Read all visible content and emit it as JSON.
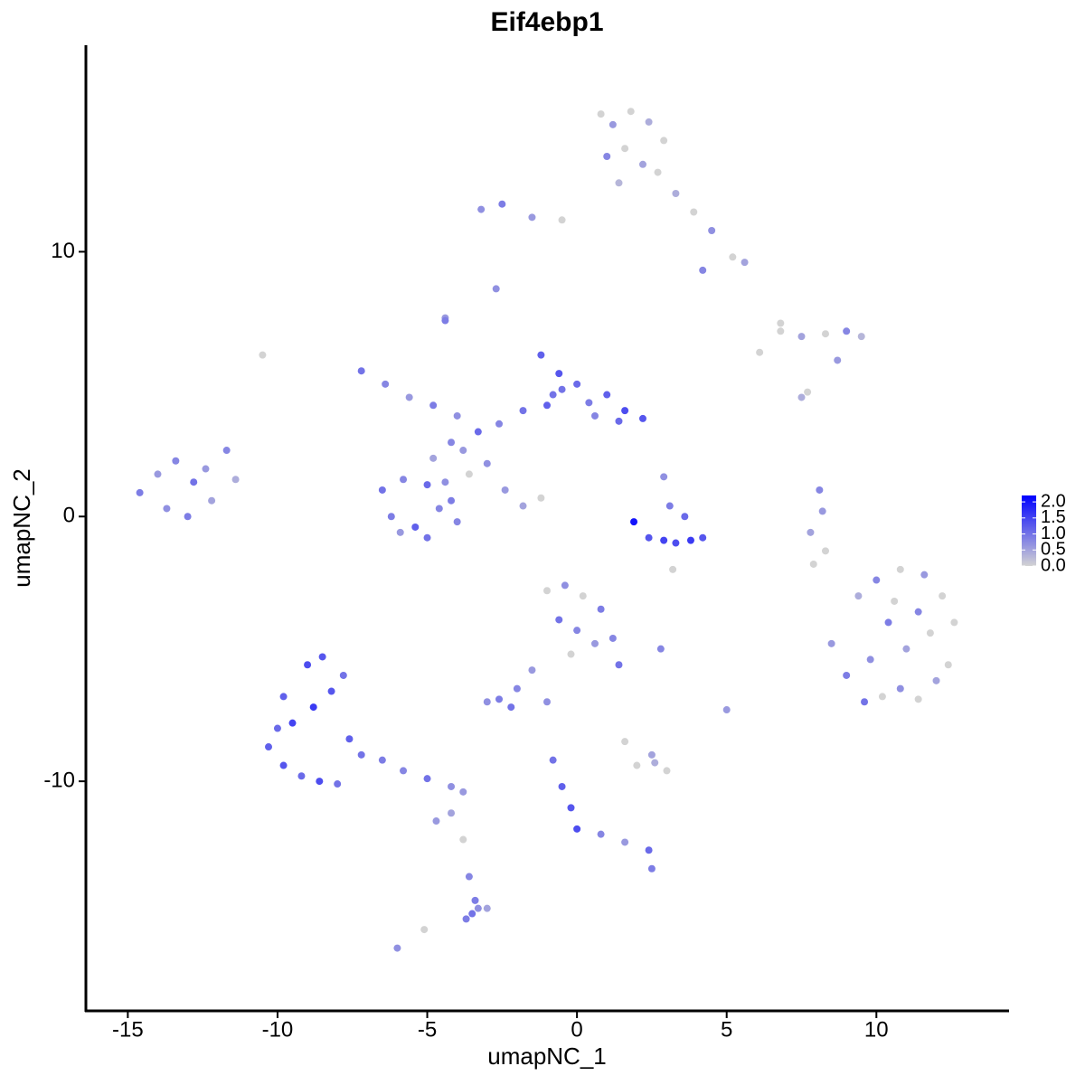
{
  "chart_data": {
    "type": "scatter",
    "title": "Eif4ebp1",
    "x_label": "umapNC_1",
    "y_label": "umapNC_2",
    "xlim": [
      -16.4,
      14.4
    ],
    "ylim": [
      -18.67,
      17.8
    ],
    "xticks": [
      -15,
      -10,
      -5,
      0,
      5,
      10
    ],
    "yticks": [
      -10,
      0,
      10
    ],
    "low_color": "#d3d3d3",
    "high_color": "#0000ff",
    "color_lim": [
      0,
      2.2
    ],
    "color_ticks": [
      {
        "value": 0,
        "label": "0.0"
      },
      {
        "value": 0.5,
        "label": "0.5"
      },
      {
        "value": 1,
        "label": "1.0"
      },
      {
        "value": 1.5,
        "label": "1.5"
      },
      {
        "value": 2,
        "label": "2.0"
      }
    ],
    "x": [
      0.8,
      1.2,
      1.8,
      2.4,
      2.9,
      1.0,
      1.6,
      2.2,
      2.7,
      1.4,
      3.3,
      3.9,
      4.5,
      5.2,
      5.6,
      4.2,
      -0.5,
      -1.5,
      -2.5,
      -3.2,
      -2.7,
      6.8,
      7.5,
      8.3,
      9.0,
      9.5,
      8.7,
      -10.5,
      -4.4,
      7.7,
      -14.6,
      -14.0,
      -13.4,
      -12.8,
      -12.2,
      -13.7,
      -13.0,
      -12.4,
      -11.7,
      -11.4,
      -6.5,
      -5.8,
      -5.0,
      -4.4,
      -6.2,
      -5.4,
      -4.6,
      -5.9,
      -5.0,
      -4.2,
      -7.2,
      -6.4,
      -5.6,
      -4.8,
      -4.0,
      -3.3,
      -2.6,
      -1.8,
      -1.0,
      -0.5,
      -1.2,
      -0.6,
      0.0,
      -0.8,
      0.4,
      1.0,
      1.6,
      2.2,
      1.4,
      0.6,
      -4.8,
      -4.2,
      -3.6,
      -3.0,
      -2.4,
      -1.8,
      -1.2,
      -4.4,
      -3.8,
      -4.0,
      2.4,
      2.9,
      3.3,
      3.8,
      4.2,
      3.1,
      3.6,
      2.9,
      1.9,
      3.2,
      8.5,
      9.0,
      9.6,
      10.2,
      10.8,
      11.4,
      12.0,
      12.6,
      9.4,
      10.0,
      10.8,
      11.6,
      12.2,
      10.4,
      11.0,
      11.8,
      9.8,
      10.6,
      11.4,
      12.4,
      -10.3,
      -9.8,
      -9.2,
      -8.6,
      -8.0,
      -9.5,
      -8.8,
      -8.2,
      -7.6,
      -9.0,
      -8.5,
      -7.8,
      -9.8,
      -10.0,
      -7.2,
      -6.5,
      -5.8,
      -5.0,
      -4.2,
      -3.8,
      -4.2,
      -3.8,
      -3.6,
      -3.4,
      -3.5,
      -5.1,
      -6.0,
      -4.7,
      -3.7,
      -3.3,
      -1.0,
      -0.4,
      0.2,
      0.8,
      1.2,
      -0.6,
      0.0,
      0.6,
      1.4,
      -0.2,
      -1.5,
      -2.0,
      -2.6,
      -2.2,
      -3.0,
      2.8,
      5.0,
      -1.0,
      1.6,
      2.6,
      2.0,
      2.5,
      3.0,
      -0.8,
      -0.5,
      -0.2,
      0.0,
      0.8,
      1.6,
      2.4,
      8.1,
      8.2,
      7.8,
      8.3,
      7.9,
      6.1,
      6.8,
      7.5,
      2.5,
      -3.0
    ],
    "y": [
      15.2,
      14.8,
      15.3,
      14.9,
      14.2,
      13.6,
      13.9,
      13.3,
      13.0,
      12.6,
      12.2,
      11.5,
      10.8,
      9.8,
      9.6,
      9.3,
      11.2,
      11.3,
      11.8,
      11.6,
      8.6,
      7.0,
      6.8,
      6.9,
      7.0,
      6.8,
      5.9,
      6.1,
      7.5,
      4.7,
      0.9,
      1.6,
      2.1,
      1.3,
      0.6,
      0.3,
      0.0,
      1.8,
      2.5,
      1.4,
      1.0,
      1.4,
      1.2,
      1.3,
      0.0,
      -0.4,
      0.3,
      -0.6,
      -0.8,
      0.6,
      5.5,
      5.0,
      4.5,
      4.2,
      3.8,
      3.2,
      3.5,
      4.0,
      4.2,
      4.8,
      6.1,
      5.4,
      5.0,
      4.6,
      4.3,
      4.6,
      4.0,
      3.7,
      3.6,
      3.8,
      2.2,
      2.8,
      1.6,
      2.0,
      1.0,
      0.4,
      0.7,
      7.4,
      2.5,
      -0.2,
      -0.8,
      -0.9,
      -1.0,
      -0.9,
      -0.8,
      0.4,
      0.0,
      1.5,
      -0.2,
      -2.0,
      -4.8,
      -6.0,
      -7.0,
      -6.8,
      -6.5,
      -6.9,
      -6.2,
      -4.0,
      -3.0,
      -2.4,
      -2.0,
      -2.2,
      -3.0,
      -4.0,
      -5.0,
      -4.4,
      -5.4,
      -3.2,
      -3.6,
      -5.6,
      -8.7,
      -9.4,
      -9.8,
      -10.0,
      -10.1,
      -7.8,
      -7.2,
      -6.6,
      -8.4,
      -5.6,
      -5.3,
      -6.0,
      -6.8,
      -8.0,
      -9.0,
      -9.2,
      -9.6,
      -9.9,
      -10.2,
      -10.4,
      -11.2,
      -12.2,
      -13.6,
      -14.5,
      -15.0,
      -15.6,
      -16.3,
      -11.5,
      -15.2,
      -14.8,
      -2.8,
      -2.6,
      -3.0,
      -3.5,
      -4.6,
      -3.9,
      -4.3,
      -4.8,
      -5.6,
      -5.2,
      -5.8,
      -6.5,
      -6.9,
      -7.2,
      -7.0,
      -5.0,
      -7.3,
      -7.0,
      -8.5,
      -9.3,
      -9.4,
      -9.0,
      -9.6,
      -9.2,
      -10.2,
      -11.0,
      -11.8,
      -12.0,
      -12.3,
      -12.6,
      1.0,
      0.2,
      -0.6,
      -1.3,
      -1.8,
      6.2,
      7.3,
      4.5,
      -13.3,
      -14.8
    ],
    "values": [
      0,
      0.6,
      0,
      0.4,
      0,
      0.8,
      0,
      0.5,
      0,
      0.3,
      0.4,
      0,
      0.7,
      0,
      0.5,
      0.8,
      0,
      0.6,
      0.9,
      0.7,
      0.7,
      0,
      0.5,
      0,
      0.8,
      0.3,
      0.6,
      0,
      0.6,
      0,
      0.9,
      0.6,
      0.8,
      1.0,
      0.5,
      0.7,
      0.9,
      0.6,
      0.8,
      0.4,
      1.0,
      0.8,
      1.1,
      0.7,
      0.9,
      1.2,
      0.8,
      0.6,
      1.0,
      0.9,
      1.0,
      0.8,
      0.6,
      0.9,
      0.7,
      1.1,
      0.8,
      1.0,
      1.2,
      1.0,
      1.2,
      1.3,
      1.1,
      1.0,
      0.9,
      1.2,
      1.4,
      1.3,
      1.1,
      0.8,
      0.5,
      0.8,
      0,
      0.7,
      0.6,
      0.5,
      0,
      0.9,
      0.6,
      0.8,
      1.3,
      1.5,
      1.4,
      1.6,
      1.3,
      0.9,
      1.1,
      0.7,
      2.0,
      0,
      0.6,
      0.9,
      1.0,
      0,
      0.7,
      0,
      0.5,
      0,
      0.4,
      0.8,
      0,
      0.6,
      0,
      0.9,
      0.5,
      0,
      0.7,
      0,
      0.8,
      0,
      1.2,
      1.3,
      1.1,
      1.4,
      1.0,
      1.5,
      1.6,
      1.3,
      1.2,
      1.4,
      1.3,
      1.0,
      1.2,
      1.1,
      1.0,
      0.9,
      0.8,
      1.0,
      0.7,
      0.6,
      0.5,
      0,
      0.8,
      0.9,
      1.0,
      0,
      0.7,
      0.6,
      0.9,
      0.7,
      0,
      0.7,
      0,
      0.9,
      0.8,
      1.0,
      0.8,
      0.6,
      1.0,
      0,
      0.6,
      0.8,
      0.9,
      1.0,
      0.7,
      0.8,
      0.6,
      0.7,
      0,
      0.4,
      0,
      0.5,
      0,
      1.0,
      1.2,
      1.3,
      1.4,
      0.8,
      0.6,
      1.1,
      0.8,
      0.6,
      0.5,
      0,
      0,
      0,
      0,
      0.4,
      0.9,
      0.5
    ]
  }
}
